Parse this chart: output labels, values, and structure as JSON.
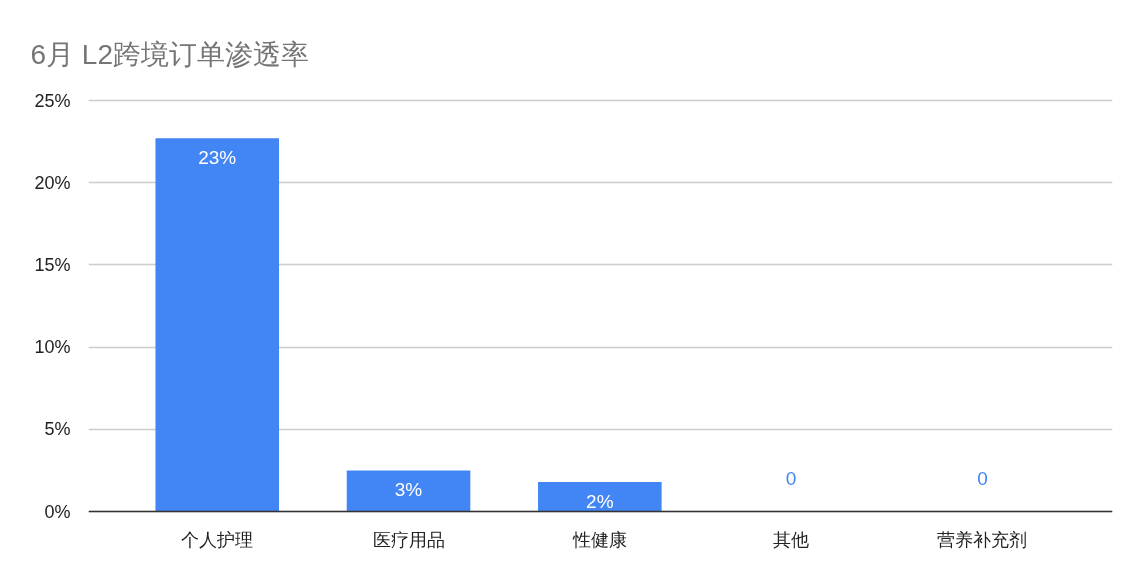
{
  "chart_data": {
    "type": "bar",
    "title": "6月 L2跨境订单渗透率",
    "categories": [
      "个人护理",
      "医疗用品",
      "性健康",
      "其他",
      "营养补充剂"
    ],
    "values": [
      22.7,
      2.5,
      1.8,
      0,
      0
    ],
    "color": "#4285f4",
    "value_labels": [
      "23%",
      "3%",
      "2%",
      "0",
      "0"
    ],
    "ylim": [
      0,
      25
    ],
    "yticks": [
      {
        "value": 0,
        "label": "0%"
      },
      {
        "value": 5,
        "label": "5%"
      },
      {
        "value": 10,
        "label": "10%"
      },
      {
        "value": 15,
        "label": "15%"
      },
      {
        "value": 20,
        "label": "20%"
      },
      {
        "value": 25,
        "label": "25%"
      }
    ],
    "grid": "y"
  }
}
